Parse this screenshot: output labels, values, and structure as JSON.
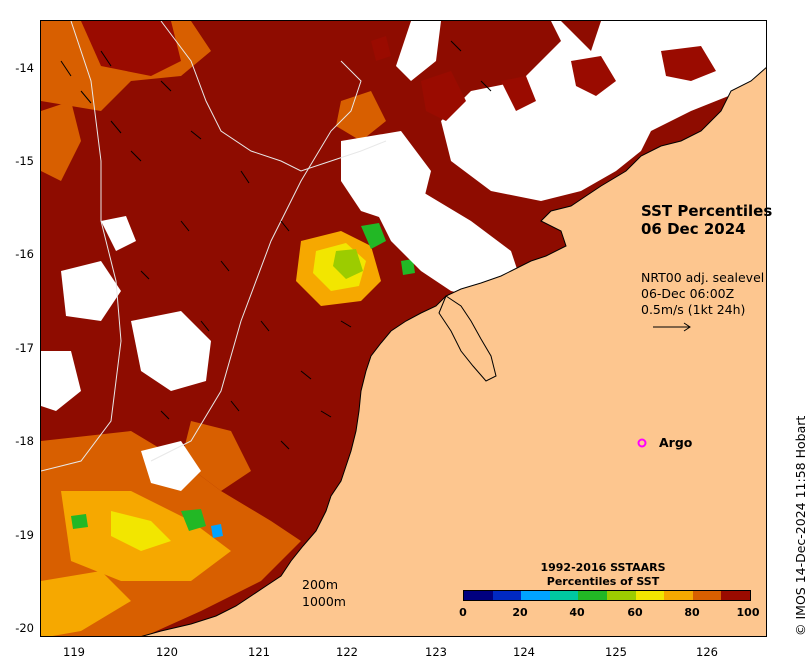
{
  "map": {
    "title": [
      "SST Percentiles",
      "06 Dec 2024"
    ],
    "vector_info": [
      "NRT00 adj. sealevel",
      "06-Dec 06:00Z",
      "0.5m/s (1kt 24h)"
    ],
    "argo_label": "Argo",
    "depth_contours": [
      "200m",
      "1000m"
    ],
    "credit": "© IMOS 14-Dec-2024 11:58 Hobart",
    "lat_ticks": [
      "-14",
      "-15",
      "-16",
      "-17",
      "-18",
      "-19",
      "-20"
    ],
    "lon_ticks": [
      "119",
      "120",
      "121",
      "122",
      "123",
      "124",
      "125",
      "126"
    ],
    "colorbar": {
      "title": [
        "1992-2016 SSTAARS",
        "Percentiles of SST"
      ],
      "tick_labels": [
        "0",
        "20",
        "40",
        "60",
        "80",
        "100"
      ],
      "colors": [
        "#00007f",
        "#0029c2",
        "#00a3ff",
        "#00c8a0",
        "#22b825",
        "#9ccc00",
        "#f2e600",
        "#f6a800",
        "#d85f00",
        "#9a0b00"
      ]
    },
    "colors": {
      "land": "#fdc68f",
      "sea_extreme": "#8e0c00",
      "cloud": "#ffffff",
      "argo_marker": "#ff00ff"
    },
    "argo_position": {
      "lon": 125.25,
      "lat": -18.0
    }
  }
}
